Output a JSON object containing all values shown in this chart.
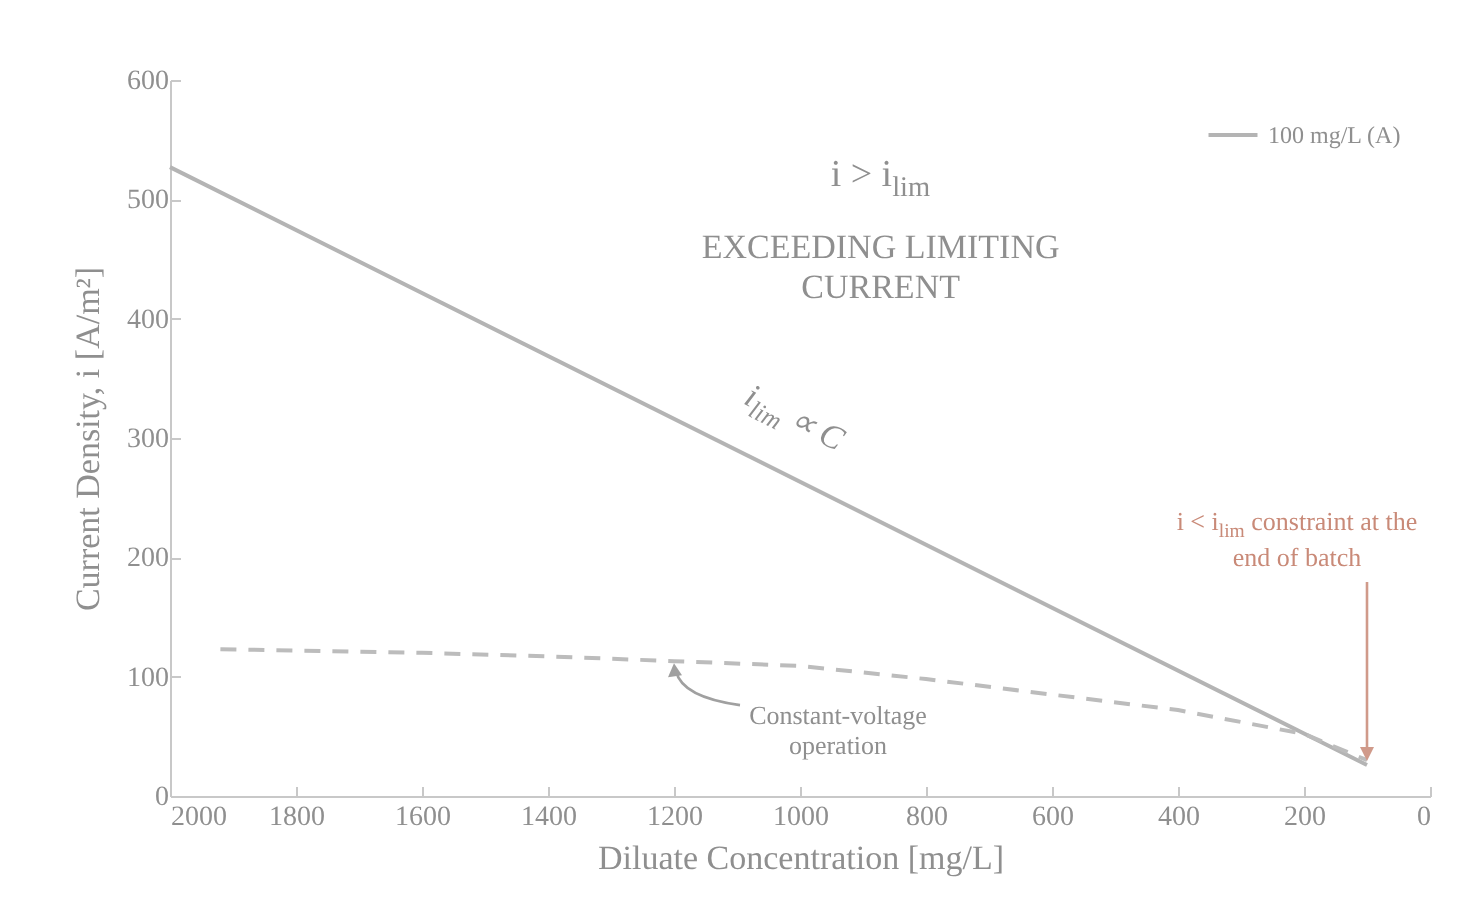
{
  "chart_data": {
    "type": "line",
    "xlabel": "Diluate Concentration [mg/L]",
    "ylabel": "Current Density, i [A/m²]",
    "xlim": [
      2000,
      0
    ],
    "xticks": [
      2000,
      1800,
      1600,
      1400,
      1200,
      1000,
      800,
      600,
      400,
      200,
      0
    ],
    "ylim": [
      0,
      600
    ],
    "yticks": [
      0,
      100,
      200,
      300,
      400,
      500,
      600
    ],
    "grid": false,
    "legend": "top right",
    "series": [
      {
        "name": "100 mg/L (A)",
        "color": "#b4b4b4",
        "line_style": "solid",
        "x": [
          2000,
          100
        ],
        "values": [
          527,
          26
        ]
      },
      {
        "color": "#bcbcbc",
        "line_style": "dashed",
        "x": [
          1920,
          1600,
          1400,
          1200,
          1000,
          800,
          600,
          400,
          200,
          100
        ],
        "values": [
          123,
          120,
          117,
          113,
          109,
          98,
          85,
          72,
          52,
          30
        ]
      }
    ],
    "annotations": [
      "i > i$_{lim}$",
      "EXCEEDING LIMITING CURRENT",
      {
        "text": "i$_{lim}$ ∝ C",
        "x": 1050,
        "y": 277
      },
      {
        "text": "Constant-voltage operation",
        "x": 1200,
        "y": 113
      },
      {
        "text": "i < i$_{lim}$ constraint at the end of batch",
        "x": 100,
        "y": 26
      }
    ]
  }
}
